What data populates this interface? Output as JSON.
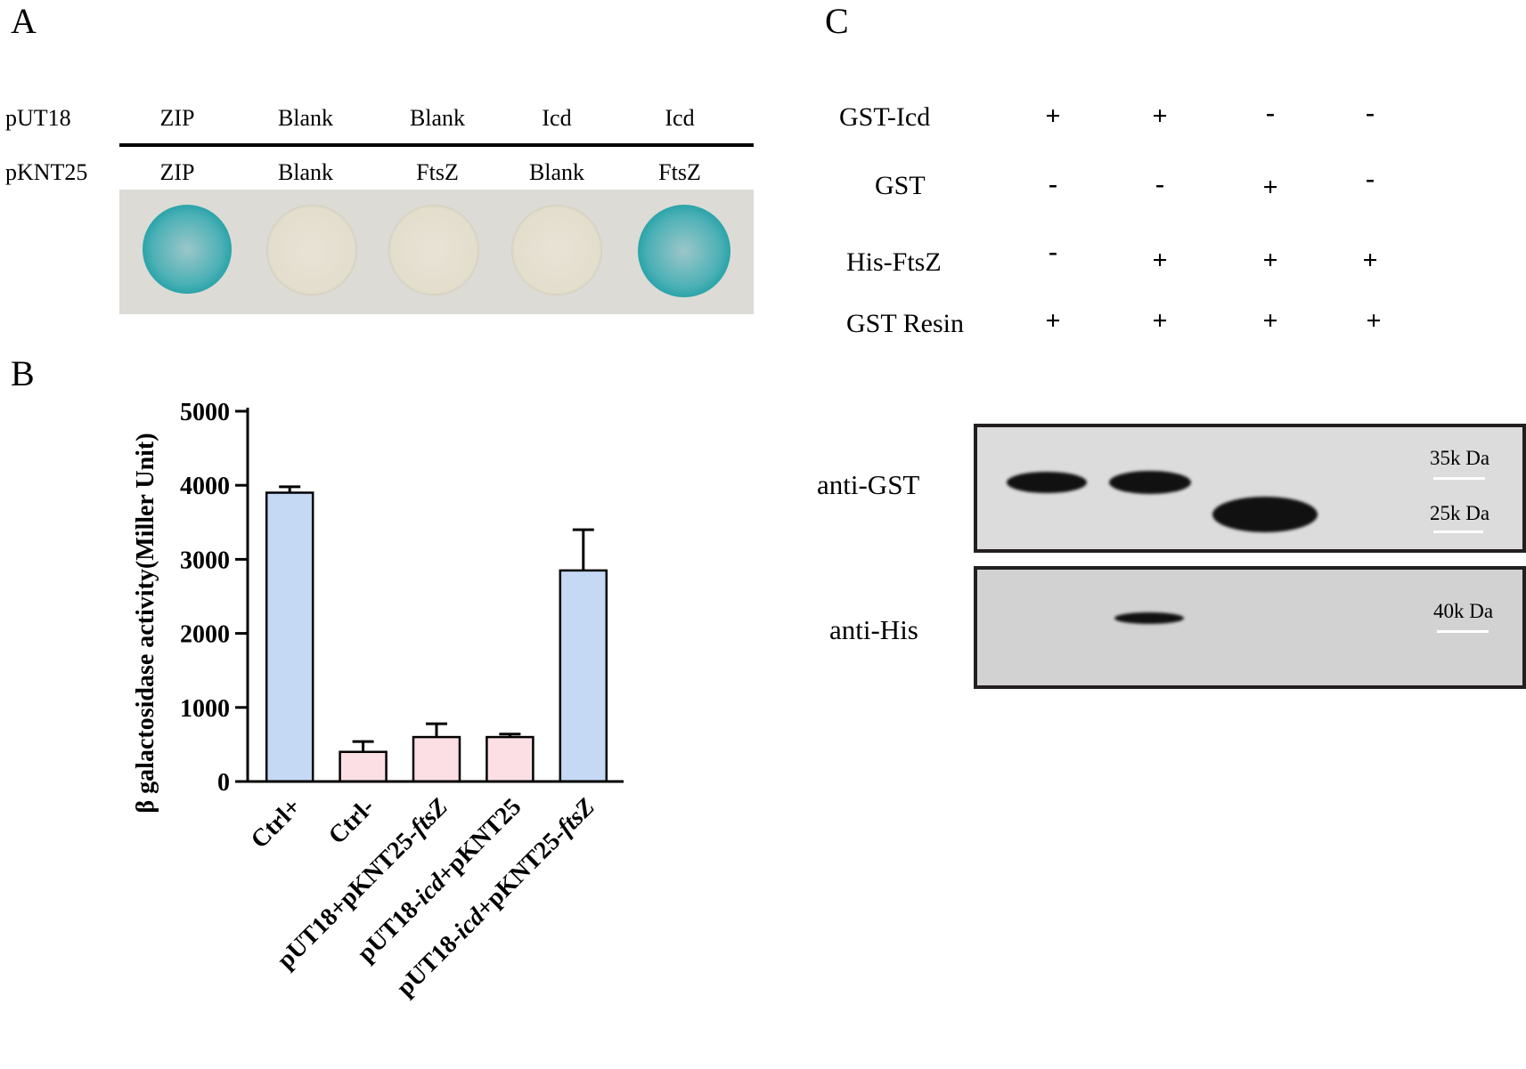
{
  "panels": {
    "a": "A",
    "b": "B",
    "c": "C"
  },
  "panel_a": {
    "row1_label": "pUT18",
    "row2_label": "pKNT25",
    "row1": [
      "ZIP",
      "Blank",
      "Blank",
      "Icd",
      "Icd"
    ],
    "row2": [
      "ZIP",
      "Blank",
      "FtsZ",
      "Blank",
      "FtsZ"
    ],
    "spot_result": [
      "positive",
      "negative",
      "negative",
      "negative",
      "positive"
    ]
  },
  "chart_data": {
    "type": "bar",
    "categories": [
      "Ctrl+",
      "Ctrl-",
      "pUT18+pKNT25-ftsZ",
      "pUT18-icd+pKNT25",
      "pUT18-icd+pKNT25-ftsZ"
    ],
    "category_parts": [
      [
        {
          "t": "Ctrl+",
          "i": false
        }
      ],
      [
        {
          "t": "Ctrl-",
          "i": false
        }
      ],
      [
        {
          "t": "pUT18+pKNT25-",
          "i": false
        },
        {
          "t": "ftsZ",
          "i": true
        }
      ],
      [
        {
          "t": "pUT18-",
          "i": false
        },
        {
          "t": "icd",
          "i": true
        },
        {
          "t": "+pKNT25",
          "i": false
        }
      ],
      [
        {
          "t": "pUT18-",
          "i": false
        },
        {
          "t": "icd",
          "i": true
        },
        {
          "t": "+pKNT25-",
          "i": false
        },
        {
          "t": "ftsZ",
          "i": true
        }
      ]
    ],
    "values": [
      3900,
      400,
      600,
      600,
      2850
    ],
    "errors": [
      80,
      140,
      180,
      40,
      550
    ],
    "bar_colors": [
      "#c5d9f5",
      "#fbdfe4",
      "#fbdfe4",
      "#fbdfe4",
      "#c5d9f5"
    ],
    "ylabel": "β galactosidase activity(Miller Unit)",
    "yticks": [
      0,
      1000,
      2000,
      3000,
      4000,
      5000
    ],
    "ylim": [
      0,
      5000
    ]
  },
  "panel_c": {
    "rows": [
      {
        "label": "GST-Icd",
        "signs": [
          "+",
          "+",
          "-",
          "-"
        ]
      },
      {
        "label": "GST",
        "signs": [
          "-",
          "-",
          "+",
          "-"
        ]
      },
      {
        "label": "His-FtsZ",
        "signs": [
          "-",
          "+",
          "+",
          "+"
        ]
      },
      {
        "label": "GST Resin",
        "signs": [
          "+",
          "+",
          "+",
          "+"
        ]
      }
    ],
    "blot_gst_label": "anti-GST",
    "blot_his_label": "anti-His",
    "marker_35": "35k Da",
    "marker_25": "25k Da",
    "marker_40": "40k Da"
  }
}
